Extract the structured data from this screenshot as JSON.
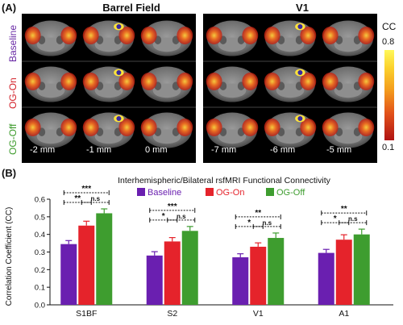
{
  "panel_a": {
    "label": "(A)",
    "titles": [
      "Barrel Field",
      "V1"
    ],
    "row_labels": [
      {
        "text": "Baseline",
        "color": "#6a2aa6"
      },
      {
        "text": "OG-On",
        "color": "#d21e26"
      },
      {
        "text": "OG-Off",
        "color": "#3b9a2a"
      }
    ],
    "depth_labels_left": [
      "-2 mm",
      "-1 mm",
      "0 mm"
    ],
    "depth_labels_right": [
      "-7 mm",
      "-6 mm",
      "-5 mm"
    ],
    "colorbar": {
      "title": "CC",
      "max": "0.8",
      "min": "0.1"
    }
  },
  "panel_b": {
    "label": "(B)"
  },
  "chart_data": {
    "type": "bar",
    "title": "Interhemispheric/Bilateral rsfMRI Functional Connectivity",
    "ylabel": "Correlation Coefficient (CC)",
    "xlabel": "",
    "categories": [
      "S1BF",
      "S2",
      "V1",
      "A1"
    ],
    "ylim": [
      0,
      0.6
    ],
    "yticks": [
      "0.0",
      "0.1",
      "0.2",
      "0.3",
      "0.4",
      "0.5",
      "0.6"
    ],
    "legend_position": "top",
    "series": [
      {
        "name": "Baseline",
        "color": "#6a1fb0",
        "values": [
          0.345,
          0.28,
          0.27,
          0.295
        ],
        "errors": [
          0.02,
          0.022,
          0.02,
          0.02
        ]
      },
      {
        "name": "OG-On",
        "color": "#e5232b",
        "values": [
          0.45,
          0.36,
          0.33,
          0.37
        ],
        "errors": [
          0.025,
          0.022,
          0.022,
          0.028
        ]
      },
      {
        "name": "OG-Off",
        "color": "#3e9d2f",
        "values": [
          0.52,
          0.42,
          0.38,
          0.4
        ],
        "errors": [
          0.025,
          0.025,
          0.028,
          0.03
        ]
      }
    ],
    "significance": [
      [
        {
          "from": 0,
          "to": 2,
          "label": "***"
        },
        {
          "from": 0,
          "to": 1,
          "label": "**"
        },
        {
          "from": 1,
          "to": 2,
          "label": "n.s"
        }
      ],
      [
        {
          "from": 0,
          "to": 2,
          "label": "***"
        },
        {
          "from": 0,
          "to": 1,
          "label": "*"
        },
        {
          "from": 1,
          "to": 2,
          "label": "n.s"
        }
      ],
      [
        {
          "from": 0,
          "to": 2,
          "label": "**"
        },
        {
          "from": 0,
          "to": 1,
          "label": "*"
        },
        {
          "from": 1,
          "to": 2,
          "label": "n.s"
        }
      ],
      [
        {
          "from": 0,
          "to": 2,
          "label": "**"
        },
        {
          "from": 0,
          "to": 1,
          "label": "*"
        },
        {
          "from": 1,
          "to": 2,
          "label": "n.s"
        }
      ]
    ]
  }
}
